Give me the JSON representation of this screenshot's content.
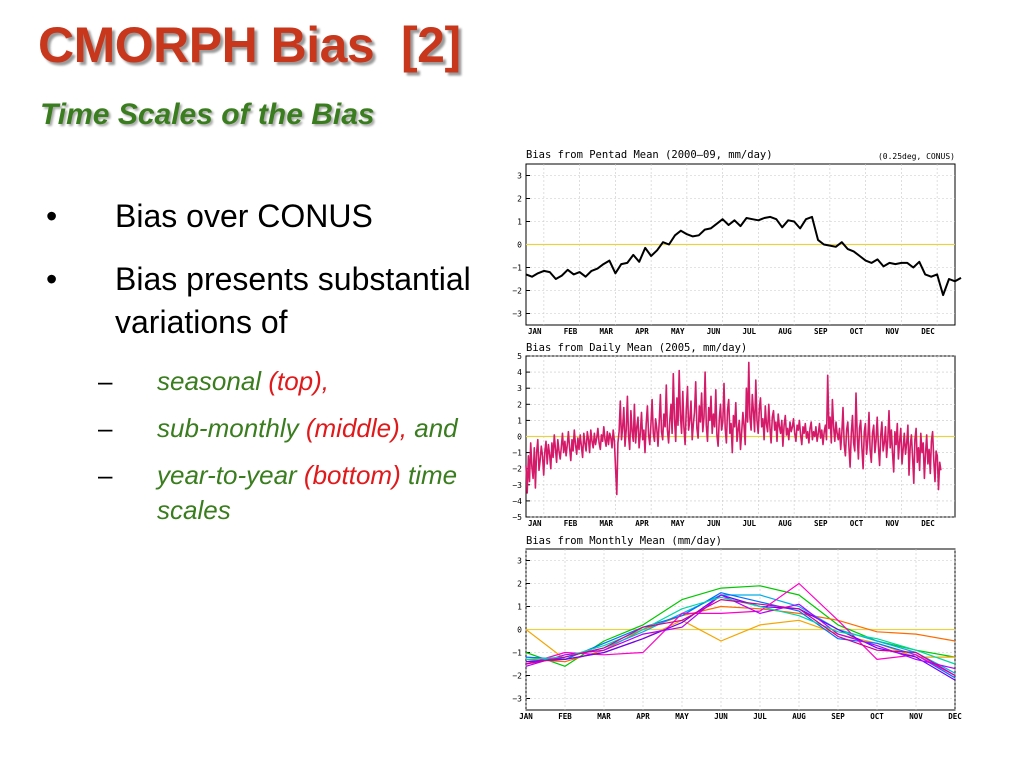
{
  "slide": {
    "title": "CMORPH Bias  [2]",
    "subtitle": "Time Scales of the Bias",
    "bullets": [
      {
        "text": "Bias over CONUS"
      },
      {
        "text": "Bias presents substantial variations of"
      }
    ],
    "sub_bullets": [
      {
        "green": "seasonal",
        "red": "(top),",
        "tail": ""
      },
      {
        "green": "sub-monthly",
        "red": "(middle),",
        "tail": "and"
      },
      {
        "green": "year-to-year",
        "red": "(bottom)",
        "tail": "time scales"
      }
    ],
    "bullet_symbol": "•",
    "dash_symbol": "–",
    "colors": {
      "title": "#c8361b",
      "subtitle": "#3a7d1e",
      "emphasis": "#e0191b",
      "zero_line": "#e6d24a"
    }
  },
  "chart_data": [
    {
      "type": "line",
      "title": "Bias from Pentad Mean (2000–09, mm/day)",
      "note": "(0.25deg, CONUS)",
      "month_labels": [
        "JAN",
        "FEB",
        "MAR",
        "APR",
        "MAY",
        "JUN",
        "JUL",
        "AUG",
        "SEP",
        "OCT",
        "NOV",
        "DEC"
      ],
      "ylim": [
        -3.5,
        3.5
      ],
      "yticks": [
        "3",
        "2",
        "1",
        "0",
        "−1",
        "−2",
        "−3"
      ],
      "color": "#000000",
      "x_range": [
        1,
        73
      ],
      "series": [
        {
          "values": [
            -1.3,
            -1.4,
            -1.25,
            -1.15,
            -1.2,
            -1.5,
            -1.35,
            -1.1,
            -1.3,
            -1.2,
            -1.4,
            -1.15,
            -1.05,
            -0.85,
            -0.7,
            -1.25,
            -0.85,
            -0.8,
            -0.45,
            -0.75,
            -0.15,
            -0.5,
            -0.25,
            0.1,
            0.0,
            0.4,
            0.6,
            0.45,
            0.35,
            0.4,
            0.65,
            0.7,
            0.9,
            1.1,
            0.85,
            1.05,
            0.8,
            1.15,
            1.1,
            1.05,
            1.15,
            1.2,
            1.1,
            0.75,
            1.05,
            1.0,
            0.7,
            1.1,
            1.2,
            0.2,
            0.0,
            -0.05,
            -0.1,
            0.1,
            -0.2,
            -0.3,
            -0.5,
            -0.7,
            -0.8,
            -0.65,
            -0.95,
            -0.8,
            -0.85,
            -0.8,
            -0.8,
            -1.0,
            -0.75,
            -1.3,
            -1.4,
            -1.3,
            -2.2,
            -1.5,
            -1.6,
            -1.45
          ]
        }
      ]
    },
    {
      "type": "line",
      "title": "Bias from Daily Mean (2005, mm/day)",
      "month_labels": [
        "JAN",
        "FEB",
        "MAR",
        "APR",
        "MAY",
        "JUN",
        "JUL",
        "AUG",
        "SEP",
        "OCT",
        "NOV",
        "DEC"
      ],
      "ylim": [
        -5,
        5
      ],
      "yticks": [
        "5",
        "4",
        "3",
        "2",
        "1",
        "0",
        "−1",
        "−2",
        "−3",
        "−4",
        "−5"
      ],
      "color": "#d41a68",
      "x_range": [
        1,
        365
      ],
      "series": [
        {
          "values": [
            -1.8,
            -3.5,
            -1.2,
            -2.8,
            -0.4,
            -1.9,
            -2.6,
            -0.7,
            -3.2,
            -1.0,
            -0.2,
            -2.1,
            -1.5,
            -0.6,
            -1.2,
            -2.4,
            -0.9,
            -0.3,
            -1.7,
            -0.5,
            -1.1,
            -2.0,
            -0.4,
            -1.3,
            0.1,
            -0.8,
            -1.6,
            -0.2,
            -0.9,
            -1.4,
            -0.6,
            0.2,
            -1.0,
            -0.3,
            -1.2,
            -0.5,
            0.3,
            -0.7,
            -1.5,
            -0.2,
            -0.9,
            0.4,
            -0.5,
            -1.1,
            -0.1,
            -0.8,
            0.1,
            -0.6,
            -1.3,
            0.2,
            -0.4,
            -0.9,
            0.3,
            -0.2,
            -1.0,
            0.4,
            -0.3,
            -0.7,
            0.2,
            -0.5,
            -0.1,
            0.5,
            -0.4,
            -0.8,
            0.1,
            -0.3,
            0.6,
            -0.2,
            -0.6,
            0.3,
            -0.5,
            0.2,
            -0.1,
            -0.7,
            0.4,
            -0.3,
            -2.0,
            -3.6,
            -0.4,
            0.3,
            2.2,
            -0.2,
            0.5,
            1.8,
            -0.6,
            0.4,
            2.5,
            0.1,
            -0.8,
            1.6,
            0.3,
            -0.3,
            2.0,
            -0.4,
            0.6,
            1.2,
            -0.7,
            0.2,
            1.5,
            -0.2,
            0.4,
            -1.0,
            0.8,
            1.9,
            0.1,
            -0.5,
            0.7,
            2.3,
            0.2,
            -0.3,
            1.1,
            0.5,
            -0.6,
            0.9,
            2.6,
            0.3,
            -0.2,
            1.4,
            0.6,
            3.2,
            0.4,
            -0.4,
            1.0,
            2.0,
            0.2,
            3.9,
            1.1,
            -0.3,
            2.4,
            0.7,
            4.1,
            1.3,
            0.2,
            2.8,
            0.6,
            -0.5,
            1.7,
            3.1,
            0.4,
            1.0,
            2.2,
            -0.2,
            0.8,
            1.5,
            3.4,
            0.5,
            -0.1,
            1.9,
            0.9,
            2.7,
            0.3,
            1.2,
            4.0,
            0.7,
            -0.3,
            1.8,
            1.0,
            2.5,
            0.2,
            1.4,
            0.6,
            2.9,
            0.1,
            -0.6,
            1.1,
            2.0,
            0.4,
            0.9,
            3.3,
            0.5,
            -0.4,
            1.6,
            2.3,
            0.2,
            0.8,
            -1.0,
            1.3,
            0.6,
            2.1,
            -0.3,
            0.4,
            1.0,
            -0.8,
            0.3,
            1.5,
            0.7,
            -0.5,
            3.0,
            0.9,
            4.6,
            1.2,
            0.4,
            2.6,
            1.5,
            0.3,
            3.5,
            1.0,
            0.2,
            1.8,
            2.4,
            0.6,
            1.1,
            -0.2,
            1.9,
            0.8,
            0.3,
            2.0,
            0.5,
            -0.4,
            1.2,
            1.6,
            0.4,
            0.9,
            -0.3,
            1.4,
            0.6,
            0.2,
            1.0,
            -0.6,
            0.7,
            1.3,
            0.1,
            0.5,
            -0.2,
            0.9,
            0.3,
            0.6,
            1.1,
            0.2,
            -0.3,
            0.7,
            0.4,
            1.0,
            0.1,
            -0.5,
            0.6,
            0.2,
            0.8,
            -0.1,
            0.3,
            -0.4,
            0.5,
            0.9,
            -0.2,
            0.3,
            0.0,
            0.6,
            -0.3,
            0.2,
            0.8,
            -0.1,
            0.4,
            -0.5,
            0.3,
            0.7,
            -0.2,
            3.8,
            0.5,
            1.2,
            -0.4,
            2.3,
            0.6,
            -0.3,
            0.9,
            0.2,
            -0.2,
            0.5,
            -0.8,
            0.3,
            1.8,
            -0.5,
            -1.2,
            0.4,
            0.9,
            -0.6,
            -1.9,
            0.2,
            1.3,
            -0.4,
            -0.9,
            2.7,
            0.1,
            -1.4,
            0.5,
            1.0,
            -0.7,
            -2.0,
            0.3,
            0.8,
            -1.1,
            -0.2,
            1.5,
            -0.8,
            -1.6,
            0.2,
            0.7,
            -1.0,
            -0.3,
            1.2,
            -0.6,
            -1.8,
            0.1,
            0.9,
            -0.9,
            -0.4,
            0.6,
            -1.3,
            -0.2,
            1.6,
            -0.7,
            0.4,
            -1.0,
            -2.2,
            0.3,
            -0.5,
            0.8,
            -1.4,
            -0.3,
            0.5,
            -1.7,
            -0.8,
            0.2,
            -1.1,
            -0.4,
            0.7,
            -2.4,
            -0.6,
            0.1,
            -1.3,
            -2.9,
            -0.2,
            0.5,
            -1.6,
            -0.7,
            -2.1,
            0.2,
            -1.0,
            -0.4,
            -2.6,
            -1.1,
            0.1,
            -1.7,
            -0.8,
            -2.3,
            -0.3,
            0.3,
            -1.5,
            -2.8,
            -0.9,
            -1.2,
            -3.3,
            -1.6,
            -2.1
          ]
        }
      ]
    },
    {
      "type": "line",
      "title": "Bias from Monthly Mean (mm/day)",
      "month_labels": [
        "JAN",
        "FEB",
        "MAR",
        "APR",
        "MAY",
        "JUN",
        "JUL",
        "AUG",
        "SEP",
        "OCT",
        "NOV",
        "DEC"
      ],
      "ylim": [
        -3.5,
        3.5
      ],
      "yticks": [
        "3",
        "2",
        "1",
        "0",
        "−1",
        "−2",
        "−3"
      ],
      "x_range": [
        1,
        12
      ],
      "series": [
        {
          "color": "#00c800",
          "values": [
            -1.0,
            -1.6,
            -0.5,
            0.2,
            1.3,
            1.8,
            1.9,
            1.5,
            0.2,
            -0.5,
            -0.9,
            -1.2
          ]
        },
        {
          "color": "#f5a500",
          "values": [
            0.0,
            -1.3,
            -1.0,
            -0.4,
            0.4,
            -0.5,
            0.2,
            0.4,
            -0.2,
            -0.6,
            -1.2,
            -1.2
          ]
        },
        {
          "color": "#ff6a00",
          "values": [
            -1.3,
            -1.4,
            -0.9,
            0.0,
            0.6,
            1.0,
            0.9,
            0.7,
            0.4,
            -0.1,
            -0.2,
            -0.5
          ]
        },
        {
          "color": "#00b0e8",
          "values": [
            -1.4,
            -1.2,
            -0.8,
            -0.1,
            0.7,
            1.5,
            1.5,
            1.0,
            0.0,
            -0.5,
            -1.0,
            -1.9
          ]
        },
        {
          "color": "#0070ff",
          "values": [
            -1.2,
            -1.3,
            -0.6,
            0.1,
            0.6,
            1.6,
            1.2,
            0.8,
            -0.4,
            -0.6,
            -1.1,
            -2.1
          ]
        },
        {
          "color": "#ff00c8",
          "values": [
            -1.5,
            -1.0,
            -1.1,
            -1.0,
            0.7,
            0.7,
            0.8,
            2.0,
            0.4,
            -1.3,
            -1.1,
            -2.0
          ]
        },
        {
          "color": "#6a00ff",
          "values": [
            -1.4,
            -1.3,
            -1.0,
            -0.4,
            0.3,
            1.5,
            1.0,
            0.9,
            0.0,
            -0.8,
            -1.2,
            -2.2
          ]
        },
        {
          "color": "#b000ff",
          "values": [
            -1.6,
            -1.1,
            -0.9,
            -0.2,
            0.1,
            1.5,
            0.7,
            1.1,
            -0.2,
            -0.7,
            -1.3,
            -1.7
          ]
        },
        {
          "color": "#00d8a0",
          "values": [
            -1.3,
            -1.2,
            -0.7,
            0.0,
            0.9,
            1.4,
            1.0,
            0.6,
            -0.1,
            -0.4,
            -0.9,
            -1.5
          ]
        },
        {
          "color": "#d00090",
          "values": [
            -1.5,
            -1.2,
            -0.8,
            0.1,
            0.4,
            1.3,
            1.1,
            0.9,
            -0.3,
            -0.9,
            -1.0,
            -2.0
          ]
        }
      ]
    }
  ]
}
